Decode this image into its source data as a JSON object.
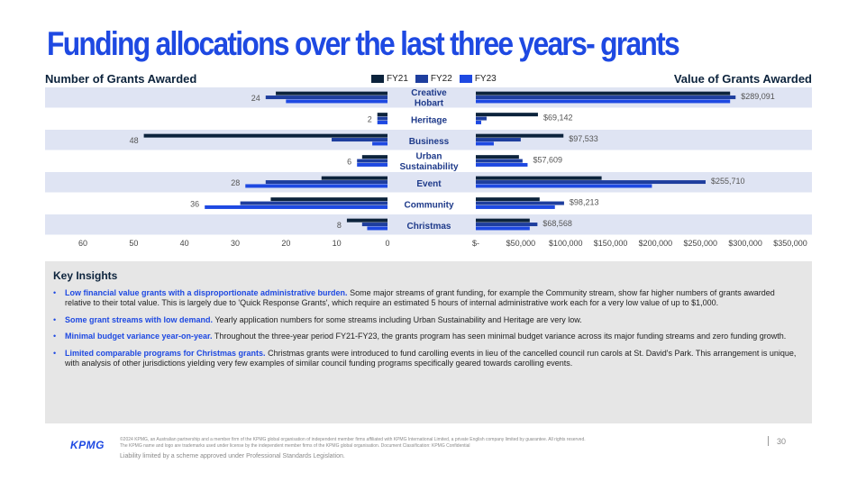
{
  "title": "Funding allocations over the last three years- grants",
  "legend": [
    {
      "name": "FY21",
      "color": "#0c233c"
    },
    {
      "name": "FY22",
      "color": "#1e3e9e"
    },
    {
      "name": "FY23",
      "color": "#1e49e2"
    }
  ],
  "chart_data": [
    {
      "type": "bar",
      "orientation": "horizontal",
      "title": "Number of Grants Awarded",
      "categories": [
        "Creative Hobart",
        "Heritage",
        "Business",
        "Urban Sustainability",
        "Event",
        "Community",
        "Christmas"
      ],
      "series": [
        {
          "name": "FY21",
          "values": [
            22,
            2,
            48,
            5,
            13,
            23,
            8
          ]
        },
        {
          "name": "FY22",
          "values": [
            24,
            2,
            11,
            6,
            24,
            29,
            5
          ]
        },
        {
          "name": "FY23",
          "values": [
            20,
            2,
            3,
            6,
            28,
            36,
            4
          ]
        }
      ],
      "data_labels": [
        "24",
        "2",
        "48",
        "6",
        "28",
        "36",
        "8"
      ],
      "xlim": [
        0,
        60
      ],
      "reversed": true,
      "ticks": [
        "60",
        "50",
        "40",
        "30",
        "20",
        "10",
        "0"
      ],
      "grid": false
    },
    {
      "type": "bar",
      "orientation": "horizontal",
      "title": "Value of Grants Awarded",
      "categories": [
        "Creative Hobart",
        "Heritage",
        "Business",
        "Urban Sustainability",
        "Event",
        "Community",
        "Christmas"
      ],
      "series": [
        {
          "name": "FY21",
          "values": [
            283000,
            69142,
            97533,
            48000,
            140000,
            71000,
            60000
          ]
        },
        {
          "name": "FY22",
          "values": [
            289091,
            12000,
            50000,
            52000,
            255710,
            98213,
            68568
          ]
        },
        {
          "name": "FY23",
          "values": [
            283000,
            6000,
            20000,
            57609,
            196000,
            88000,
            60000
          ]
        }
      ],
      "data_labels": [
        "$289,091",
        "$69,142",
        "$97,533",
        "$57,609",
        "$255,710",
        "$98,213",
        "$68,568"
      ],
      "xlim": [
        0,
        350000
      ],
      "ticks": [
        "$-",
        "$50,000",
        "$100,000",
        "$150,000",
        "$200,000",
        "$250,000",
        "$300,000",
        "$350,000"
      ],
      "grid": false
    }
  ],
  "category_labels": [
    [
      "Creative",
      "Hobart"
    ],
    [
      "Heritage"
    ],
    [
      "Business"
    ],
    [
      "Urban",
      "Sustainability"
    ],
    [
      "Event"
    ],
    [
      "Community"
    ],
    [
      "Christmas"
    ]
  ],
  "band_color": "#dfe4f3",
  "insights": {
    "title": "Key Insights",
    "items": [
      {
        "lead": "Low financial value grants with a disproportionate administrative burden.",
        "text": " Some major streams of grant funding, for example the Community stream, show far higher numbers of grants awarded relative to their total value. This is largely due to 'Quick Response Grants', which require an estimated 5 hours of internal administrative work each for a very low value of up to $1,000."
      },
      {
        "lead": "Some grant streams with low demand.",
        "text": " Yearly application numbers for some streams including Urban Sustainability and Heritage are very low."
      },
      {
        "lead": "Minimal budget variance year-on-year.",
        "text": " Throughout the three-year period FY21-FY23, the grants program has seen minimal budget variance across its major funding streams and zero funding growth."
      },
      {
        "lead": "Limited comparable programs for Christmas grants.",
        "text": " Christmas grants were introduced to fund carolling events in lieu of the cancelled council run carols at St. David's Park. This arrangement is unique, with analysis of other jurisdictions yielding very few examples of similar council funding programs specifically geared towards carolling events."
      }
    ]
  },
  "footer": {
    "logo": "KPMG",
    "legal_1": "©2024 KPMG, an Australian partnership and a member firm of the KPMG global organisation of independent member firms affiliated with KPMG International Limited, a private English company limited by guarantee. All rights reserved.",
    "legal_2": "The KPMG name and logo are trademarks used under license by the independent member firms of the KPMG global organisation. Document Classification: KPMG Confidential",
    "page_number": "30",
    "liability": "Liability limited by a scheme approved under Professional Standards Legislation."
  }
}
